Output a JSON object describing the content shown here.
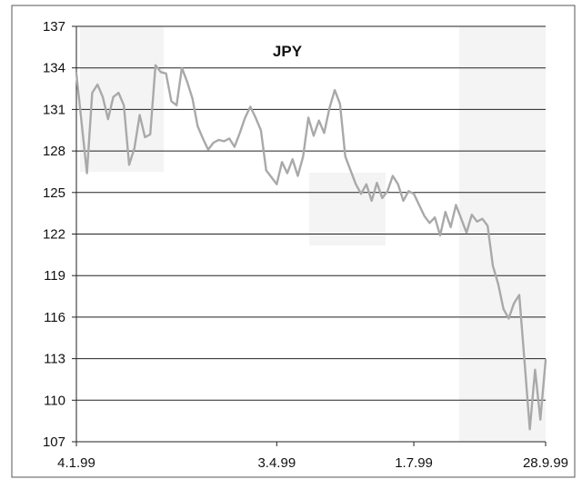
{
  "chart_data": {
    "type": "line",
    "title": "JPY",
    "xlabel": "",
    "ylabel": "",
    "ylim": [
      107,
      137
    ],
    "yticks": [
      107,
      110,
      113,
      116,
      119,
      122,
      125,
      128,
      131,
      134,
      137
    ],
    "xticks": [
      "4.1.99",
      "3.4.99",
      "1.7.99",
      "28.9.99"
    ],
    "grid": "horizontal",
    "legend": "none",
    "line_color": "#a9a9a9",
    "x": [
      "4.1.99",
      "6.1.99",
      "8.1.99",
      "11.1.99",
      "13.1.99",
      "15.1.99",
      "18.1.99",
      "20.1.99",
      "22.1.99",
      "25.1.99",
      "27.1.99",
      "29.1.99",
      "1.2.99",
      "3.2.99",
      "5.2.99",
      "8.2.99",
      "10.2.99",
      "12.2.99",
      "15.2.99",
      "17.2.99",
      "19.2.99",
      "22.2.99",
      "24.2.99",
      "26.2.99",
      "1.3.99",
      "3.3.99",
      "5.3.99",
      "8.3.99",
      "10.3.99",
      "12.3.99",
      "15.3.99",
      "17.3.99",
      "19.3.99",
      "22.3.99",
      "24.3.99",
      "26.3.99",
      "29.3.99",
      "31.3.99",
      "3.4.99",
      "6.4.99",
      "8.4.99",
      "12.4.99",
      "15.4.99",
      "19.4.99",
      "22.4.99",
      "26.4.99",
      "29.4.99",
      "3.5.99",
      "6.5.99",
      "10.5.99",
      "13.5.99",
      "17.5.99",
      "20.5.99",
      "24.5.99",
      "27.5.99",
      "31.5.99",
      "3.6.99",
      "7.6.99",
      "10.6.99",
      "14.6.99",
      "17.6.99",
      "21.6.99",
      "24.6.99",
      "28.6.99",
      "1.7.99",
      "5.7.99",
      "8.7.99",
      "12.7.99",
      "15.7.99",
      "19.7.99",
      "22.7.99",
      "26.7.99",
      "29.7.99",
      "2.8.99",
      "5.8.99",
      "9.8.99",
      "12.8.99",
      "16.8.99",
      "19.8.99",
      "23.8.99",
      "26.8.99",
      "30.8.99",
      "2.9.99",
      "6.9.99",
      "9.9.99",
      "13.9.99",
      "16.9.99",
      "20.9.99",
      "23.9.99",
      "28.9.99"
    ],
    "series": [
      {
        "values": [
          133.6,
          130.0,
          126.4,
          132.2,
          132.8,
          131.9,
          130.3,
          131.9,
          132.2,
          131.3,
          127.0,
          128.2,
          130.6,
          129.0,
          129.2,
          134.2,
          133.7,
          133.6,
          131.6,
          131.3,
          134.0,
          133.0,
          131.8,
          129.8,
          128.9,
          128.1,
          128.6,
          128.8,
          128.7,
          128.9,
          128.3,
          129.3,
          130.4,
          131.2,
          130.4,
          129.5,
          126.6,
          126.1,
          125.6,
          127.2,
          126.4,
          127.4,
          126.2,
          127.6,
          130.4,
          129.1,
          130.2,
          129.3,
          131.1,
          132.4,
          131.4,
          127.6,
          126.6,
          125.6,
          124.9,
          125.6,
          124.4,
          125.7,
          124.6,
          125.1,
          126.2,
          125.6,
          124.4,
          125.1,
          124.9,
          124.1,
          123.3,
          122.8,
          123.2,
          121.9,
          123.6,
          122.5,
          124.1,
          123.1,
          122.1,
          123.4,
          122.9,
          123.1,
          122.6,
          119.7,
          118.4,
          116.6,
          115.9,
          117.0,
          117.6,
          112.8,
          107.9,
          112.2,
          108.6,
          112.9
        ]
      }
    ]
  }
}
